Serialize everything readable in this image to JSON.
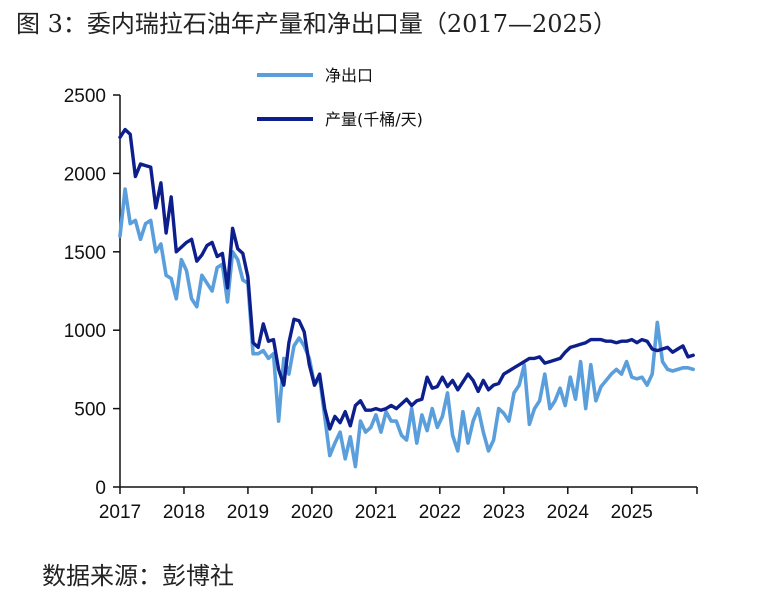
{
  "title": "图 3：委内瑞拉石油年产量和净出口量（2017—2025）",
  "source": "数据来源：彭博社",
  "chart_data": {
    "type": "line",
    "title": "图 3：委内瑞拉石油年产量和净出口量（2017—2025）",
    "xlabel": "",
    "ylabel": "",
    "xlim": [
      2017,
      2026.02
    ],
    "ylim": [
      0,
      2500
    ],
    "x_ticks": [
      "2017",
      "2018",
      "2019",
      "2020",
      "2021",
      "2022",
      "2023",
      "2024",
      "2025"
    ],
    "y_ticks": [
      "0",
      "500",
      "1000",
      "1500",
      "2000",
      "2500"
    ],
    "grid": false,
    "legend_position": "top-center",
    "series": [
      {
        "name": "净出口",
        "color": "#5a9fdc",
        "x": [
          2017.0,
          2017.08,
          2017.16,
          2017.24,
          2017.32,
          2017.4,
          2017.48,
          2017.56,
          2017.64,
          2017.72,
          2017.8,
          2017.88,
          2017.96,
          2018.04,
          2018.12,
          2018.2,
          2018.28,
          2018.36,
          2018.44,
          2018.52,
          2018.6,
          2018.68,
          2018.76,
          2018.84,
          2018.92,
          2019.0,
          2019.08,
          2019.16,
          2019.24,
          2019.32,
          2019.4,
          2019.48,
          2019.56,
          2019.64,
          2019.72,
          2019.8,
          2019.88,
          2019.96,
          2020.04,
          2020.12,
          2020.2,
          2020.28,
          2020.36,
          2020.44,
          2020.52,
          2020.6,
          2020.68,
          2020.76,
          2020.84,
          2020.92,
          2021.0,
          2021.08,
          2021.16,
          2021.24,
          2021.32,
          2021.4,
          2021.48,
          2021.56,
          2021.64,
          2021.72,
          2021.8,
          2021.88,
          2021.96,
          2022.04,
          2022.12,
          2022.2,
          2022.28,
          2022.36,
          2022.44,
          2022.52,
          2022.6,
          2022.68,
          2022.76,
          2022.84,
          2022.92,
          2023.0,
          2023.08,
          2023.16,
          2023.24,
          2023.32,
          2023.4,
          2023.48,
          2023.56,
          2023.64,
          2023.72,
          2023.8,
          2023.88,
          2023.96,
          2024.04,
          2024.12,
          2024.2,
          2024.28,
          2024.36,
          2024.44,
          2024.52,
          2024.6,
          2024.68,
          2024.76,
          2024.84,
          2024.92,
          2025.0,
          2025.08,
          2025.16,
          2025.24,
          2025.32,
          2025.4,
          2025.48,
          2025.56,
          2025.64,
          2025.72,
          2025.8,
          2025.88,
          2025.96
        ],
        "values": [
          1600,
          1900,
          1680,
          1700,
          1580,
          1680,
          1700,
          1500,
          1550,
          1350,
          1330,
          1200,
          1450,
          1380,
          1200,
          1150,
          1350,
          1300,
          1250,
          1400,
          1420,
          1180,
          1500,
          1450,
          1320,
          1300,
          850,
          850,
          870,
          820,
          850,
          420,
          820,
          720,
          900,
          950,
          900,
          820,
          650,
          700,
          450,
          200,
          280,
          350,
          180,
          320,
          130,
          420,
          350,
          380,
          460,
          350,
          480,
          420,
          420,
          330,
          300,
          500,
          280,
          460,
          360,
          500,
          380,
          450,
          600,
          330,
          230,
          480,
          280,
          420,
          500,
          350,
          230,
          300,
          500,
          470,
          420,
          600,
          650,
          780,
          400,
          500,
          550,
          720,
          500,
          550,
          630,
          520,
          700,
          560,
          800,
          500,
          780,
          550,
          640,
          680,
          720,
          750,
          720,
          800,
          700,
          690,
          700,
          650,
          720,
          1050,
          800,
          750,
          740,
          750,
          760,
          760,
          750
        ]
      },
      {
        "name": "产量(千桶/天)",
        "color": "#0d1f8c",
        "x": [
          2017.0,
          2017.08,
          2017.16,
          2017.24,
          2017.32,
          2017.4,
          2017.48,
          2017.56,
          2017.64,
          2017.72,
          2017.8,
          2017.88,
          2017.96,
          2018.04,
          2018.12,
          2018.2,
          2018.28,
          2018.36,
          2018.44,
          2018.52,
          2018.6,
          2018.68,
          2018.76,
          2018.84,
          2018.92,
          2019.0,
          2019.08,
          2019.16,
          2019.24,
          2019.32,
          2019.4,
          2019.48,
          2019.56,
          2019.64,
          2019.72,
          2019.8,
          2019.88,
          2019.96,
          2020.04,
          2020.12,
          2020.2,
          2020.28,
          2020.36,
          2020.44,
          2020.52,
          2020.6,
          2020.68,
          2020.76,
          2020.84,
          2020.92,
          2021.0,
          2021.08,
          2021.16,
          2021.24,
          2021.32,
          2021.4,
          2021.48,
          2021.56,
          2021.64,
          2021.72,
          2021.8,
          2021.88,
          2021.96,
          2022.04,
          2022.12,
          2022.2,
          2022.28,
          2022.36,
          2022.44,
          2022.52,
          2022.6,
          2022.68,
          2022.76,
          2022.84,
          2022.92,
          2023.0,
          2023.08,
          2023.16,
          2023.24,
          2023.32,
          2023.4,
          2023.48,
          2023.56,
          2023.64,
          2023.72,
          2023.8,
          2023.88,
          2023.96,
          2024.04,
          2024.12,
          2024.2,
          2024.28,
          2024.36,
          2024.44,
          2024.52,
          2024.6,
          2024.68,
          2024.76,
          2024.84,
          2024.92,
          2025.0,
          2025.08,
          2025.16,
          2025.24,
          2025.32,
          2025.4,
          2025.48,
          2025.56,
          2025.64,
          2025.72,
          2025.8,
          2025.88,
          2025.96
        ],
        "values": [
          2230,
          2280,
          2250,
          1980,
          2060,
          2050,
          2040,
          1780,
          1940,
          1620,
          1850,
          1500,
          1530,
          1560,
          1580,
          1440,
          1480,
          1540,
          1560,
          1470,
          1490,
          1270,
          1650,
          1520,
          1490,
          1340,
          920,
          890,
          1040,
          930,
          940,
          750,
          650,
          920,
          1070,
          1060,
          990,
          780,
          650,
          720,
          500,
          370,
          450,
          410,
          480,
          390,
          520,
          550,
          490,
          490,
          500,
          490,
          500,
          520,
          500,
          530,
          560,
          520,
          550,
          560,
          700,
          630,
          640,
          700,
          640,
          680,
          620,
          670,
          720,
          680,
          610,
          680,
          620,
          650,
          660,
          720,
          740,
          760,
          780,
          800,
          820,
          820,
          830,
          790,
          800,
          810,
          820,
          860,
          890,
          900,
          910,
          920,
          940,
          940,
          940,
          930,
          930,
          920,
          930,
          930,
          940,
          920,
          940,
          930,
          880,
          870,
          880,
          890,
          860,
          880,
          900,
          830,
          840
        ]
      }
    ]
  }
}
